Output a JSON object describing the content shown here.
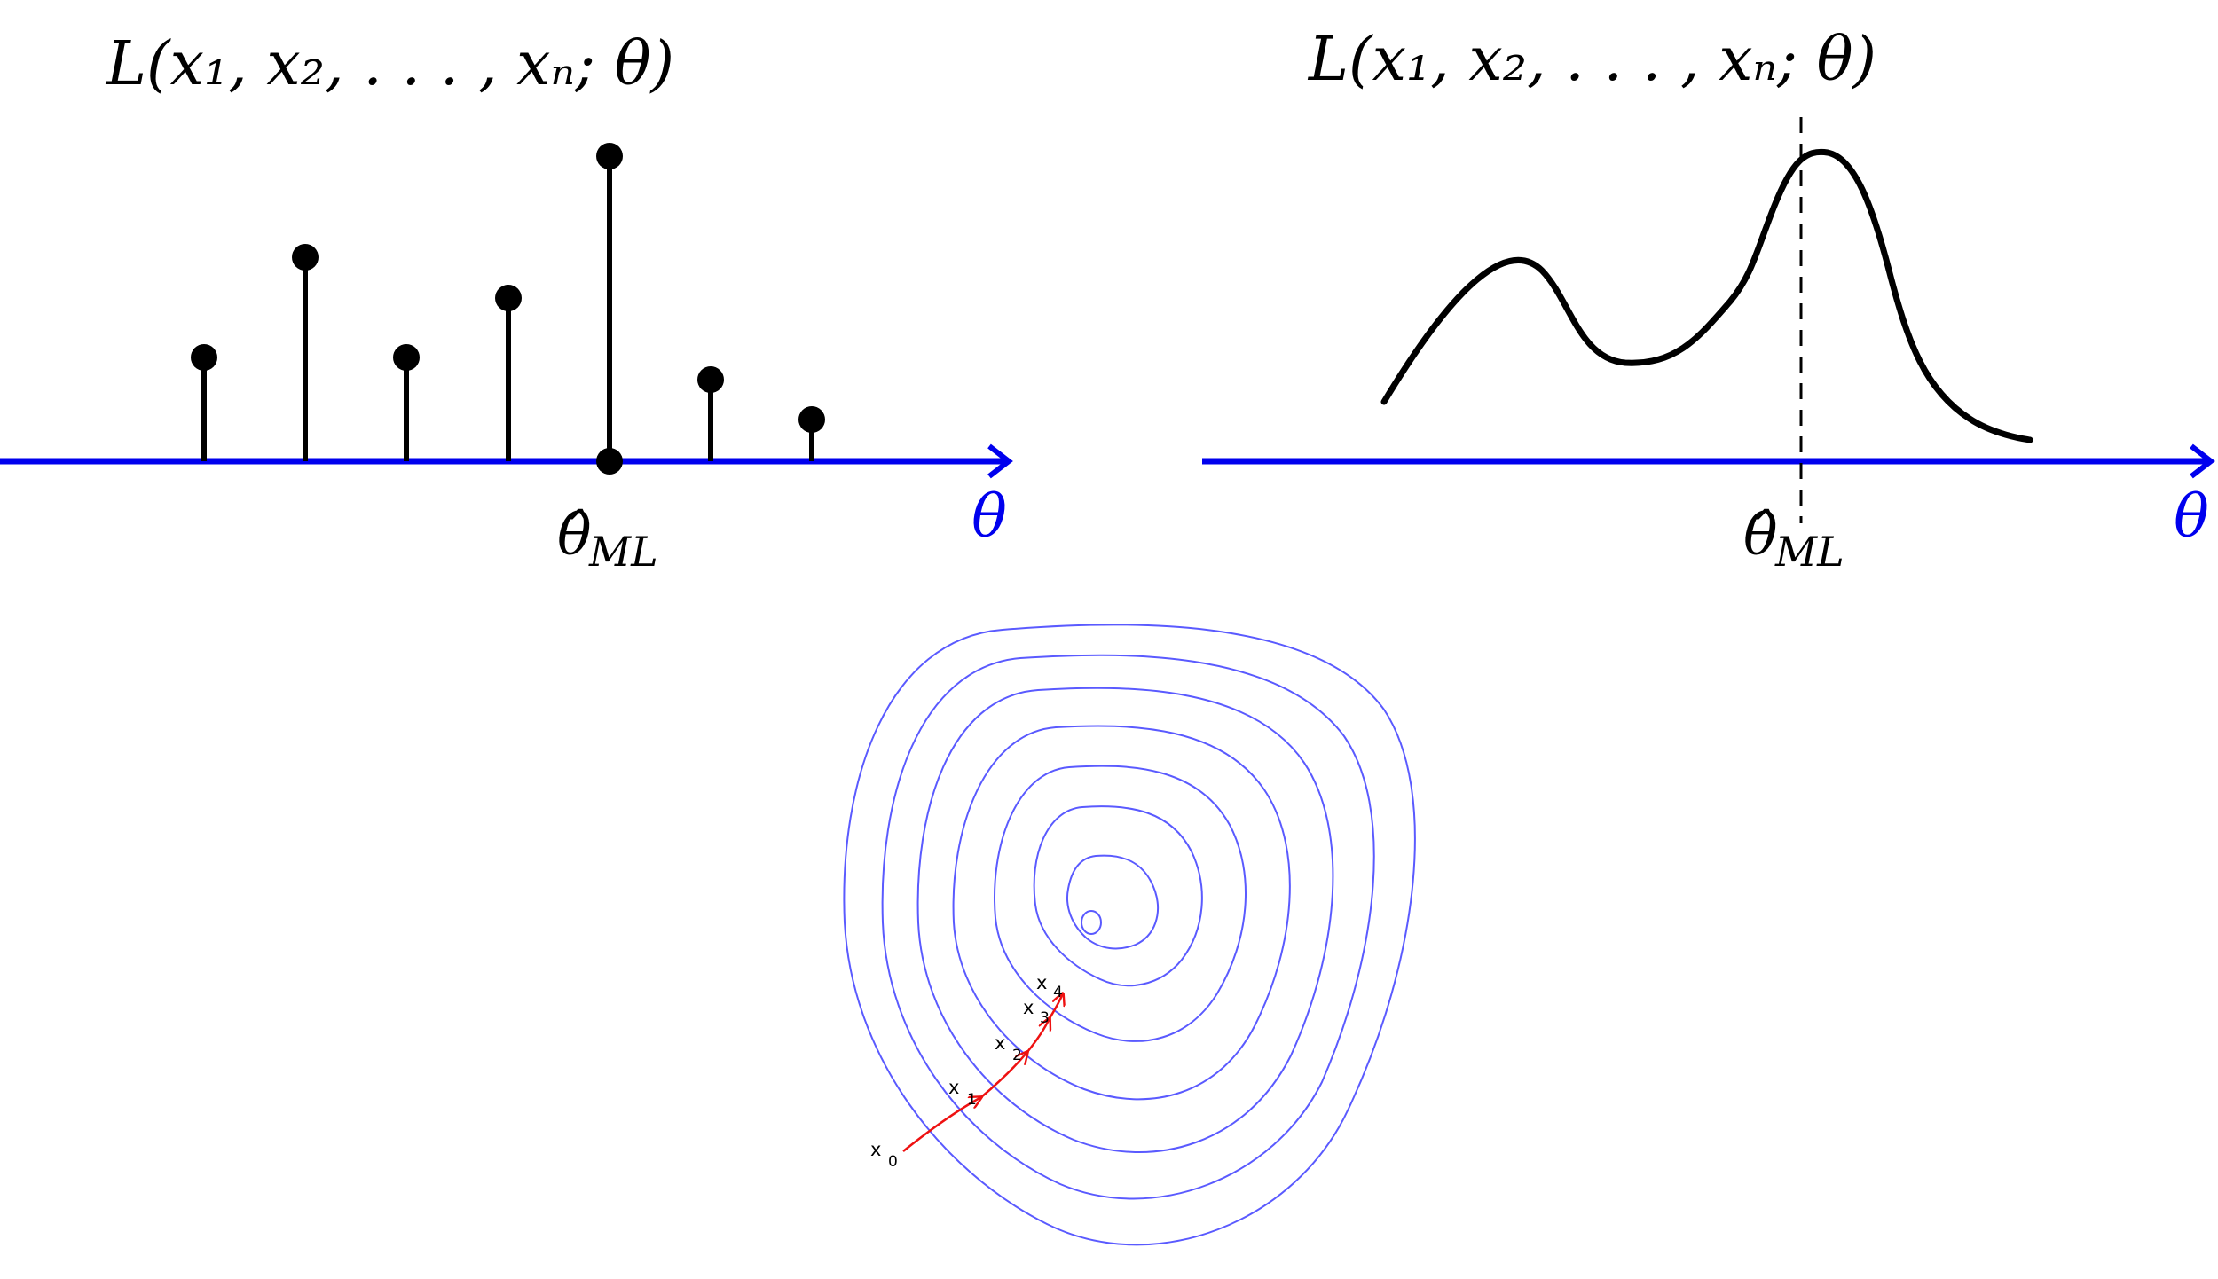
{
  "panels": {
    "discrete": {
      "title": "L(x₁, x₂, . . . , xₙ; θ)",
      "estimate_label": "θ̂",
      "estimate_sub": "ML",
      "axis_label": "θ"
    },
    "continuous": {
      "title": "L(x₁, x₂, . . . , xₙ; θ)",
      "estimate_label": "θ̂",
      "estimate_sub": "ML",
      "axis_label": "θ"
    },
    "contour": {
      "iterates": [
        {
          "x": "x",
          "sub": "0"
        },
        {
          "x": "x",
          "sub": "1"
        },
        {
          "x": "x",
          "sub": "2"
        },
        {
          "x": "x",
          "sub": "3"
        },
        {
          "x": "x",
          "sub": "4"
        }
      ]
    }
  },
  "colors": {
    "axis": "#0000ee",
    "stem": "#000000",
    "contour": "#5a5aff",
    "path": "#ee1111"
  }
}
